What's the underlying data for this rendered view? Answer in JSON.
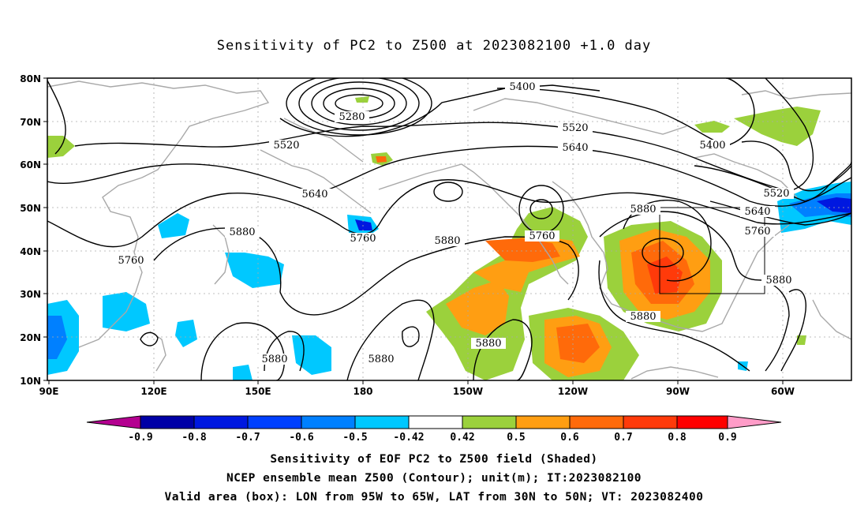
{
  "title": "Sensitivity of PC2 to Z500 at 2023082100 +1.0 day",
  "lat_labels": [
    "80N",
    "70N",
    "60N",
    "50N",
    "40N",
    "30N",
    "20N",
    "10N"
  ],
  "lon_labels": [
    "90E",
    "120E",
    "150E",
    "180",
    "150W",
    "120W",
    "90W",
    "60W"
  ],
  "contour_labels": [
    "5280",
    "5400",
    "5520",
    "5640",
    "5520",
    "5640",
    "5760",
    "5880",
    "5760",
    "5880",
    "5400",
    "5520",
    "5640",
    "5760",
    "5880",
    "5880",
    "5880",
    "5880",
    "5880",
    "5760"
  ],
  "colorbar": {
    "labels": [
      "-0.9",
      "-0.8",
      "-0.7",
      "-0.6",
      "-0.5",
      "-0.42",
      "0.42",
      "0.5",
      "0.6",
      "0.7",
      "0.8",
      "0.9"
    ],
    "colors": [
      "#b40090",
      "#0000a6",
      "#0018e0",
      "#0040ff",
      "#0080ff",
      "#00c8ff",
      "#ffffff",
      "#9bd13c",
      "#ff9e12",
      "#ff6a0a",
      "#ff3a0a",
      "#ff0000",
      "#ff9cc8"
    ]
  },
  "captions": [
    "Sensitivity of EOF PC2 to Z500 field (Shaded)",
    "NCEP ensemble mean Z500 (Contour); unit(m); IT:2023082100",
    "Valid area (box): LON from 95W to 65W, LAT from 30N to 50N; VT: 2023082400"
  ]
}
